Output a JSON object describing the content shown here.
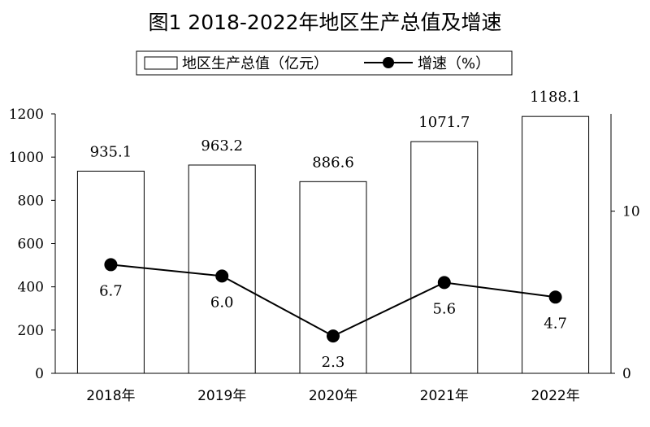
{
  "chart_data": {
    "type": "bar",
    "title": "图1  2018-2022年地区生产总值及增速",
    "categories": [
      "2018年",
      "2019年",
      "2020年",
      "2021年",
      "2022年"
    ],
    "series": [
      {
        "name": "地区生产总值（亿元）",
        "type": "bar",
        "axis": "left",
        "values": [
          935.1,
          963.2,
          886.6,
          1071.7,
          1188.1
        ]
      },
      {
        "name": "增速（%）",
        "type": "line",
        "axis": "right",
        "values": [
          6.7,
          6.0,
          2.3,
          5.6,
          4.7
        ]
      }
    ],
    "y_left": {
      "ylim": [
        0,
        1200
      ],
      "ticks": [
        "0",
        "200",
        "400",
        "600",
        "800",
        "1000",
        "1200"
      ]
    },
    "y_right": {
      "ylim": [
        0,
        16
      ],
      "ticks": [
        "0",
        "10"
      ]
    },
    "legend_position": "top-center",
    "grid": false,
    "colors": {
      "bar_fill": "#ffffff",
      "bar_stroke": "#000000",
      "line": "#000000",
      "marker": "#000000"
    }
  }
}
